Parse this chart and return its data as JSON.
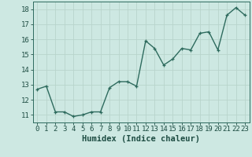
{
  "x": [
    0,
    1,
    2,
    3,
    4,
    5,
    6,
    7,
    8,
    9,
    10,
    11,
    12,
    13,
    14,
    15,
    16,
    17,
    18,
    19,
    20,
    21,
    22,
    23
  ],
  "y": [
    12.7,
    12.9,
    11.2,
    11.2,
    10.9,
    11.0,
    11.2,
    11.2,
    12.8,
    13.2,
    13.2,
    12.9,
    15.9,
    15.4,
    14.3,
    14.7,
    15.4,
    15.3,
    16.4,
    16.5,
    15.3,
    17.6,
    18.1,
    17.6
  ],
  "xlabel": "Humidex (Indice chaleur)",
  "xlim": [
    -0.5,
    23.5
  ],
  "ylim": [
    10.5,
    18.5
  ],
  "yticks": [
    11,
    12,
    13,
    14,
    15,
    16,
    17,
    18
  ],
  "xticks": [
    0,
    1,
    2,
    3,
    4,
    5,
    6,
    7,
    8,
    9,
    10,
    11,
    12,
    13,
    14,
    15,
    16,
    17,
    18,
    19,
    20,
    21,
    22,
    23
  ],
  "line_color": "#2e6b5e",
  "marker_color": "#2e6b5e",
  "bg_color": "#cde8e2",
  "grid_color": "#b8d4cc",
  "axis_color": "#2e6b5e",
  "label_color": "#1e4d43",
  "tick_color": "#1e4d43",
  "xlabel_fontsize": 7.5,
  "tick_fontsize": 6.5,
  "linewidth": 1.0,
  "markersize": 2.5
}
